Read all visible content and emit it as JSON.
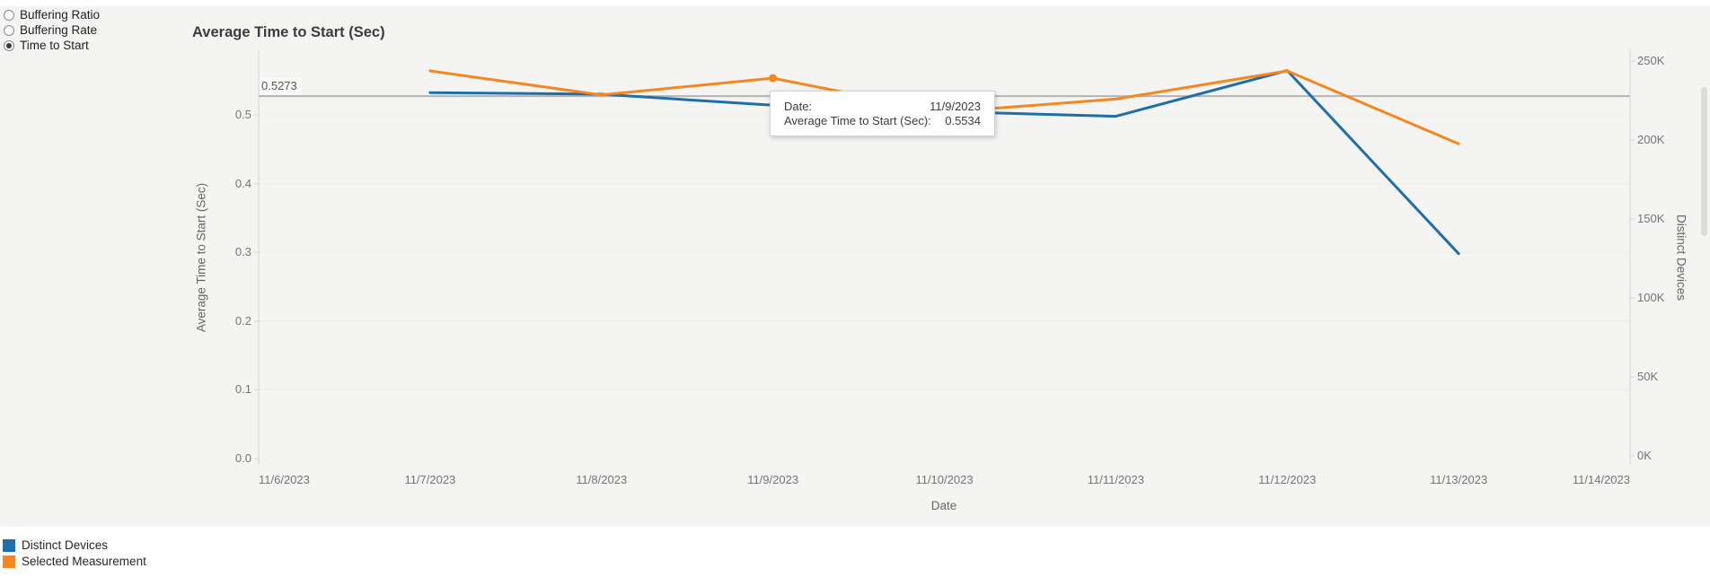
{
  "controls": {
    "options": [
      {
        "label": "Buffering Ratio",
        "selected": false
      },
      {
        "label": "Buffering Rate",
        "selected": false
      },
      {
        "label": "Time to Start",
        "selected": true
      }
    ]
  },
  "chart": {
    "title": "Average Time to Start (Sec)",
    "reference_line": {
      "label": "0.5273",
      "value": 0.5273,
      "color": "#b3b3b3"
    },
    "tooltip": {
      "rows": [
        {
          "label": "Date:",
          "value": "11/9/2023"
        },
        {
          "label": "Average Time to Start (Sec):",
          "value": "0.5534"
        }
      ]
    },
    "x_axis": {
      "title": "Date",
      "ticks": [
        "11/6/2023",
        "11/7/2023",
        "11/8/2023",
        "11/9/2023",
        "11/10/2023",
        "11/11/2023",
        "11/12/2023",
        "11/13/2023",
        "11/14/2023"
      ]
    },
    "y_left": {
      "title": "Average Time to Start (Sec)",
      "ticks": [
        {
          "label": "0.0",
          "value": 0.0
        },
        {
          "label": "0.1",
          "value": 0.1
        },
        {
          "label": "0.2",
          "value": 0.2
        },
        {
          "label": "0.3",
          "value": 0.3
        },
        {
          "label": "0.4",
          "value": 0.4
        },
        {
          "label": "0.5",
          "value": 0.5
        }
      ]
    },
    "y_right": {
      "title": "Distinct Devices",
      "ticks": [
        {
          "label": "0K",
          "value": 0
        },
        {
          "label": "50K",
          "value": 50000
        },
        {
          "label": "100K",
          "value": 100000
        },
        {
          "label": "150K",
          "value": 150000
        },
        {
          "label": "200K",
          "value": 200000
        },
        {
          "label": "250K",
          "value": 250000
        }
      ]
    },
    "legend": [
      {
        "label": "Distinct Devices",
        "color": "#1e6fa9"
      },
      {
        "label": "Selected Measurement",
        "color": "#f6861f"
      }
    ]
  },
  "chart_data": {
    "type": "line",
    "title": "Average Time to Start (Sec)",
    "xlabel": "Date",
    "x": [
      "11/7/2023",
      "11/8/2023",
      "11/9/2023",
      "11/10/2023",
      "11/11/2023",
      "11/12/2023",
      "11/13/2023"
    ],
    "series": [
      {
        "name": "Distinct Devices",
        "axis": "right",
        "color": "#1e6fa9",
        "values": [
          230000,
          229000,
          222000,
          218000,
          215000,
          244000,
          128000
        ]
      },
      {
        "name": "Selected Measurement",
        "axis": "left",
        "color": "#f6861f",
        "values": [
          0.564,
          0.529,
          0.5534,
          0.504,
          0.523,
          0.564,
          0.458
        ]
      }
    ],
    "marker": {
      "series": "Selected Measurement",
      "x": "11/9/2023",
      "value": 0.5534
    },
    "reference_line": {
      "value": 0.5273,
      "axis": "left",
      "label": "0.5273"
    },
    "axis_ranges": {
      "x": [
        "11/6/2023",
        "11/14/2023"
      ],
      "left_ylim": [
        0,
        0.595
      ],
      "right_ylim": [
        0,
        257000
      ]
    },
    "grid": "horizontal-faint",
    "legend_position": "bottom-left"
  }
}
